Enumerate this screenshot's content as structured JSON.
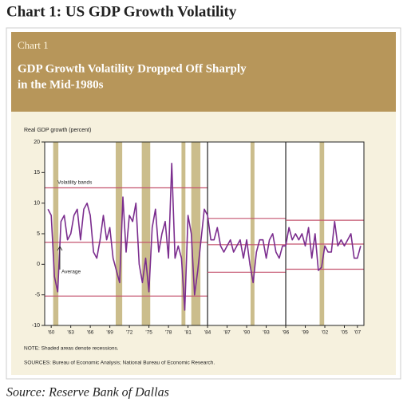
{
  "heading": "Chart 1: US GDP Growth Volatility",
  "panel": {
    "label": "Chart 1",
    "title": [
      "GDP Growth Volatility Dropped Off Sharply",
      "in the Mid-1980s"
    ]
  },
  "source": "Source: Reserve Bank of Dallas",
  "chart_data": {
    "type": "line",
    "y_label": "Real GDP growth (percent)",
    "annotations": [
      "Volatility bands",
      "Average"
    ],
    "notes": [
      "NOTE: Shaded areas denote recessions.",
      "SOURCES: Bureau of Economic Analysis; National Bureau of Economic Research."
    ],
    "color": "#7b2d8e",
    "band_color": "#c4546f",
    "recession_color": "#cbbd8c",
    "xlim": [
      1959,
      2008
    ],
    "ylim": [
      -10,
      20
    ],
    "yticks": [
      20,
      15,
      10,
      5,
      0,
      -5,
      -10
    ],
    "xticks": [
      {
        "value": 1960,
        "label": "'60"
      },
      {
        "value": 1963,
        "label": "'63"
      },
      {
        "value": 1966,
        "label": "'66"
      },
      {
        "value": 1969,
        "label": "'69"
      },
      {
        "value": 1972,
        "label": "'72"
      },
      {
        "value": 1975,
        "label": "'75"
      },
      {
        "value": 1978,
        "label": "'78"
      },
      {
        "value": 1981,
        "label": "'81"
      },
      {
        "value": 1984,
        "label": "'84"
      },
      {
        "value": 1987,
        "label": "'87"
      },
      {
        "value": 1990,
        "label": "'90"
      },
      {
        "value": 1993,
        "label": "'93"
      },
      {
        "value": 1996,
        "label": "'96"
      },
      {
        "value": 1999,
        "label": "'99"
      },
      {
        "value": 2002,
        "label": "'02"
      },
      {
        "value": 2005,
        "label": "'05"
      },
      {
        "value": 2007,
        "label": "'07"
      }
    ],
    "recessions": [
      [
        1960.3,
        1961.1
      ],
      [
        1969.9,
        1970.9
      ],
      [
        1973.9,
        1975.2
      ],
      [
        1980.0,
        1980.6
      ],
      [
        1981.5,
        1982.9
      ],
      [
        1990.6,
        1991.2
      ],
      [
        2001.2,
        2001.9
      ]
    ],
    "bands": [
      {
        "x": [
          1959,
          1984
        ],
        "upper": 12.5,
        "lower": -5.2,
        "average": 3.6
      },
      {
        "x": [
          1984,
          1996
        ],
        "upper": 7.5,
        "lower": -1.3,
        "average": 3.2
      },
      {
        "x": [
          1996,
          2008
        ],
        "upper": 7.2,
        "lower": -0.8,
        "average": 3.3
      }
    ],
    "x": [
      1959.5,
      1960,
      1960.5,
      1961,
      1961.5,
      1962,
      1962.5,
      1963,
      1963.5,
      1964,
      1964.5,
      1965,
      1965.5,
      1966,
      1966.5,
      1967,
      1967.5,
      1968,
      1968.5,
      1969,
      1969.5,
      1970,
      1970.5,
      1971,
      1971.5,
      1972,
      1972.5,
      1973,
      1973.5,
      1974,
      1974.5,
      1975,
      1975.5,
      1976,
      1976.5,
      1977,
      1977.5,
      1978,
      1978.5,
      1979,
      1979.5,
      1980,
      1980.5,
      1981,
      1981.5,
      1982,
      1982.5,
      1983,
      1983.5,
      1984,
      1984.5,
      1985,
      1985.5,
      1986,
      1986.5,
      1987,
      1987.5,
      1988,
      1988.5,
      1989,
      1989.5,
      1990,
      1990.5,
      1991,
      1991.5,
      1992,
      1992.5,
      1993,
      1993.5,
      1994,
      1994.5,
      1995,
      1995.5,
      1996,
      1996.5,
      1997,
      1997.5,
      1998,
      1998.5,
      1999,
      1999.5,
      2000,
      2000.5,
      2001,
      2001.5,
      2002,
      2002.5,
      2003,
      2003.5,
      2004,
      2004.5,
      2005,
      2005.5,
      2006,
      2006.5,
      2007,
      2007.5
    ],
    "values": [
      9,
      8,
      -2,
      -4.5,
      7,
      8,
      4,
      5,
      8,
      9,
      4,
      9,
      10,
      8,
      2,
      1,
      4,
      8,
      4,
      6,
      1,
      -1,
      -3,
      11,
      2,
      8,
      7,
      10,
      0,
      -3,
      1,
      -4.5,
      6,
      9,
      2,
      5,
      7,
      1,
      16.5,
      1,
      3,
      1,
      -7.5,
      8,
      5,
      -5,
      -1,
      4,
      9,
      8,
      4,
      4,
      6,
      3,
      2,
      3,
      4,
      2,
      3,
      4,
      1,
      4,
      0,
      -3,
      2,
      4,
      4,
      1,
      4,
      5,
      2,
      1,
      3,
      3,
      6,
      4,
      5,
      4,
      5,
      3,
      6,
      1,
      5,
      -1,
      -0.5,
      3,
      2,
      2,
      7,
      3,
      4,
      3,
      4,
      5,
      1,
      1,
      3
    ]
  }
}
